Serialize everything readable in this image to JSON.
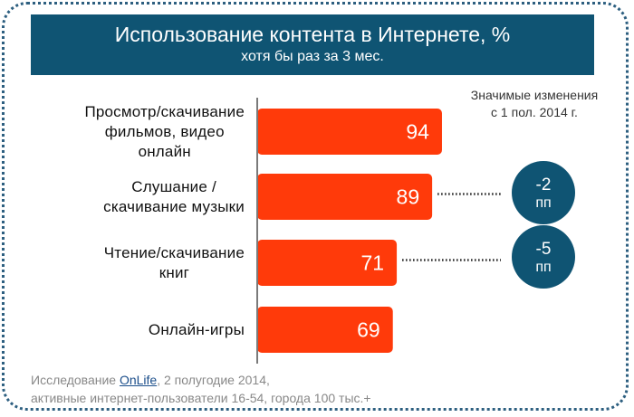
{
  "header": {
    "title": "Использование контента в Интернете, %",
    "subtitle": "хотя бы раз за 3 мес."
  },
  "note": {
    "line1": "Значимые изменения",
    "line2": "с 1 пол. 2014 г."
  },
  "colors": {
    "bar": "#ff3a0a",
    "header": "#0f5473",
    "badge": "#0f5473"
  },
  "chart_data": {
    "type": "bar",
    "orientation": "horizontal",
    "title": "Использование контента в Интернете, %",
    "subtitle": "хотя бы раз за 3 мес.",
    "categories": [
      [
        "Просмотр/скачивание",
        "фильмов, видео",
        "онлайн"
      ],
      [
        "Слушание /",
        "скачивание музыки"
      ],
      [
        "Чтение/скачивание",
        "книг"
      ],
      [
        "Онлайн-игры"
      ]
    ],
    "values": [
      94,
      89,
      71,
      69
    ],
    "xlim": [
      0,
      100
    ],
    "changes": [
      null,
      {
        "value": "-2",
        "unit": "пп"
      },
      {
        "value": "-5",
        "unit": "пп"
      },
      null
    ]
  },
  "footer": {
    "prefix": "Исследование ",
    "link": "OnLife",
    "suffix": ", 2 полугодие 2014,",
    "line2": "активные интернет-пользователи 16-54, города 100 тыс.+"
  }
}
